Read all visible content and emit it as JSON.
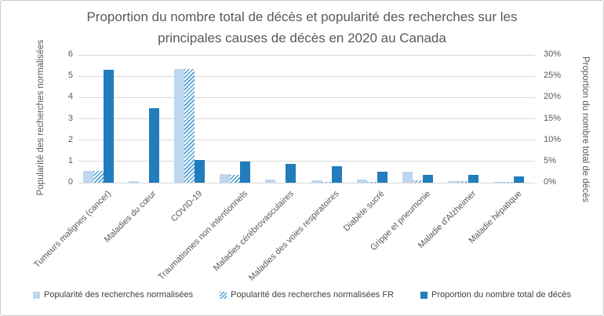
{
  "title": "Proportion du nombre total de décès et popularité des recherches sur les principales causes de décès en 2020 au Canada",
  "left_axis": {
    "title": "Popularité des recherches normalisées",
    "ticks": [
      "0",
      "1",
      "2",
      "3",
      "4",
      "5",
      "6"
    ],
    "min": 0,
    "max": 6
  },
  "right_axis": {
    "title": "Proportion du nombre total de décès",
    "ticks": [
      "0%",
      "5%",
      "10%",
      "15%",
      "20%",
      "25%",
      "30%"
    ],
    "min": 0,
    "max": 30
  },
  "colors": {
    "search_light_blue": "#bdd7ee",
    "search_fr_hatch_blue": "#4c9fd6",
    "deaths_dark_blue": "#217dbb",
    "gridline_gray": "#d9d9d9",
    "text_gray": "#595959"
  },
  "chart_data": {
    "type": "bar",
    "title": "Proportion du nombre total de décès et popularité des recherches sur les principales causes de décès en 2020 au Canada",
    "categories": [
      "Tumeurs malignes (cancer)",
      "Maladies du cœur",
      "COVID-19",
      "Traumatismes non intentionnels",
      "Maladies cérébrovasculaires",
      "Maladies des voies respiratoires",
      "Diabète sucré",
      "Grippe et pneumonie",
      "Maladie d'Alzheimer",
      "Maladie hépatique"
    ],
    "series": [
      {
        "name": "Popularité des recherches normalisées",
        "axis": "left",
        "style": "solid-light-blue",
        "values": [
          0.55,
          0.08,
          5.35,
          0.4,
          0.13,
          0.1,
          0.15,
          0.5,
          0.08,
          0.05
        ]
      },
      {
        "name": "Popularité des recherches normalisées FR",
        "axis": "left",
        "style": "hatched-blue",
        "values": [
          0.55,
          0,
          5.35,
          0.35,
          0,
          0.05,
          0.03,
          0.1,
          0.06,
          0.02
        ]
      },
      {
        "name": "Proportion du nombre total de décès",
        "axis": "right",
        "style": "solid-dark-blue",
        "values": [
          26.5,
          17.5,
          5.3,
          5.0,
          4.5,
          3.8,
          2.5,
          1.9,
          1.8,
          1.5
        ]
      }
    ],
    "left_ylim": [
      0,
      6
    ],
    "right_ylim": [
      0,
      30
    ],
    "grid": true,
    "legend_position": "bottom",
    "xlabel": "",
    "ylabel_left": "Popularité des recherches normalisées",
    "ylabel_right": "Proportion du nombre total de décès"
  }
}
